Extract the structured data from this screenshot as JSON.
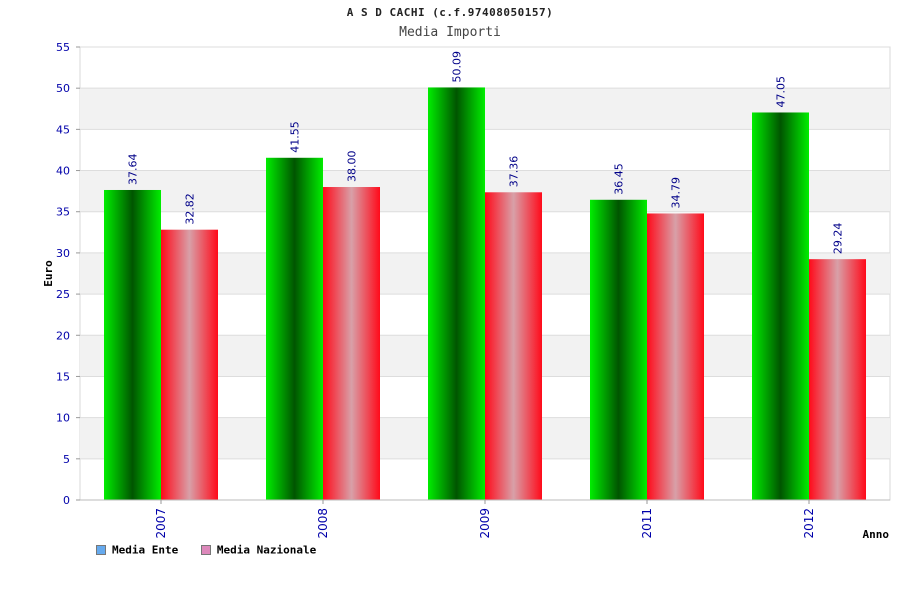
{
  "chart_data": {
    "type": "bar",
    "title": "A S D CACHI (c.f.97408050157)",
    "subtitle": "Media Importi",
    "xlabel": "Anno",
    "ylabel": "Euro",
    "categories": [
      "2007",
      "2008",
      "2009",
      "2011",
      "2012"
    ],
    "series": [
      {
        "name": "Media Ente",
        "values": [
          37.64,
          41.55,
          50.09,
          36.45,
          47.05
        ],
        "color": "#00cc00"
      },
      {
        "name": "Media Nazionale",
        "values": [
          32.82,
          38.0,
          37.36,
          34.79,
          29.24
        ],
        "color": "#ff1a2a"
      }
    ],
    "value_labels": [
      [
        "37.64",
        "41.55",
        "50.09",
        "36.45",
        "47.05"
      ],
      [
        "32.82",
        "38.00",
        "37.36",
        "34.79",
        "29.24"
      ]
    ],
    "ylim": [
      0,
      55
    ],
    "yticks": [
      "0",
      "5",
      "10",
      "15",
      "20",
      "25",
      "30",
      "35",
      "40",
      "45",
      "50",
      "55"
    ],
    "grid": true,
    "legend_position": "bottom-left",
    "legend_swatch_colors": [
      "#66aaee",
      "#dd88bb"
    ]
  }
}
